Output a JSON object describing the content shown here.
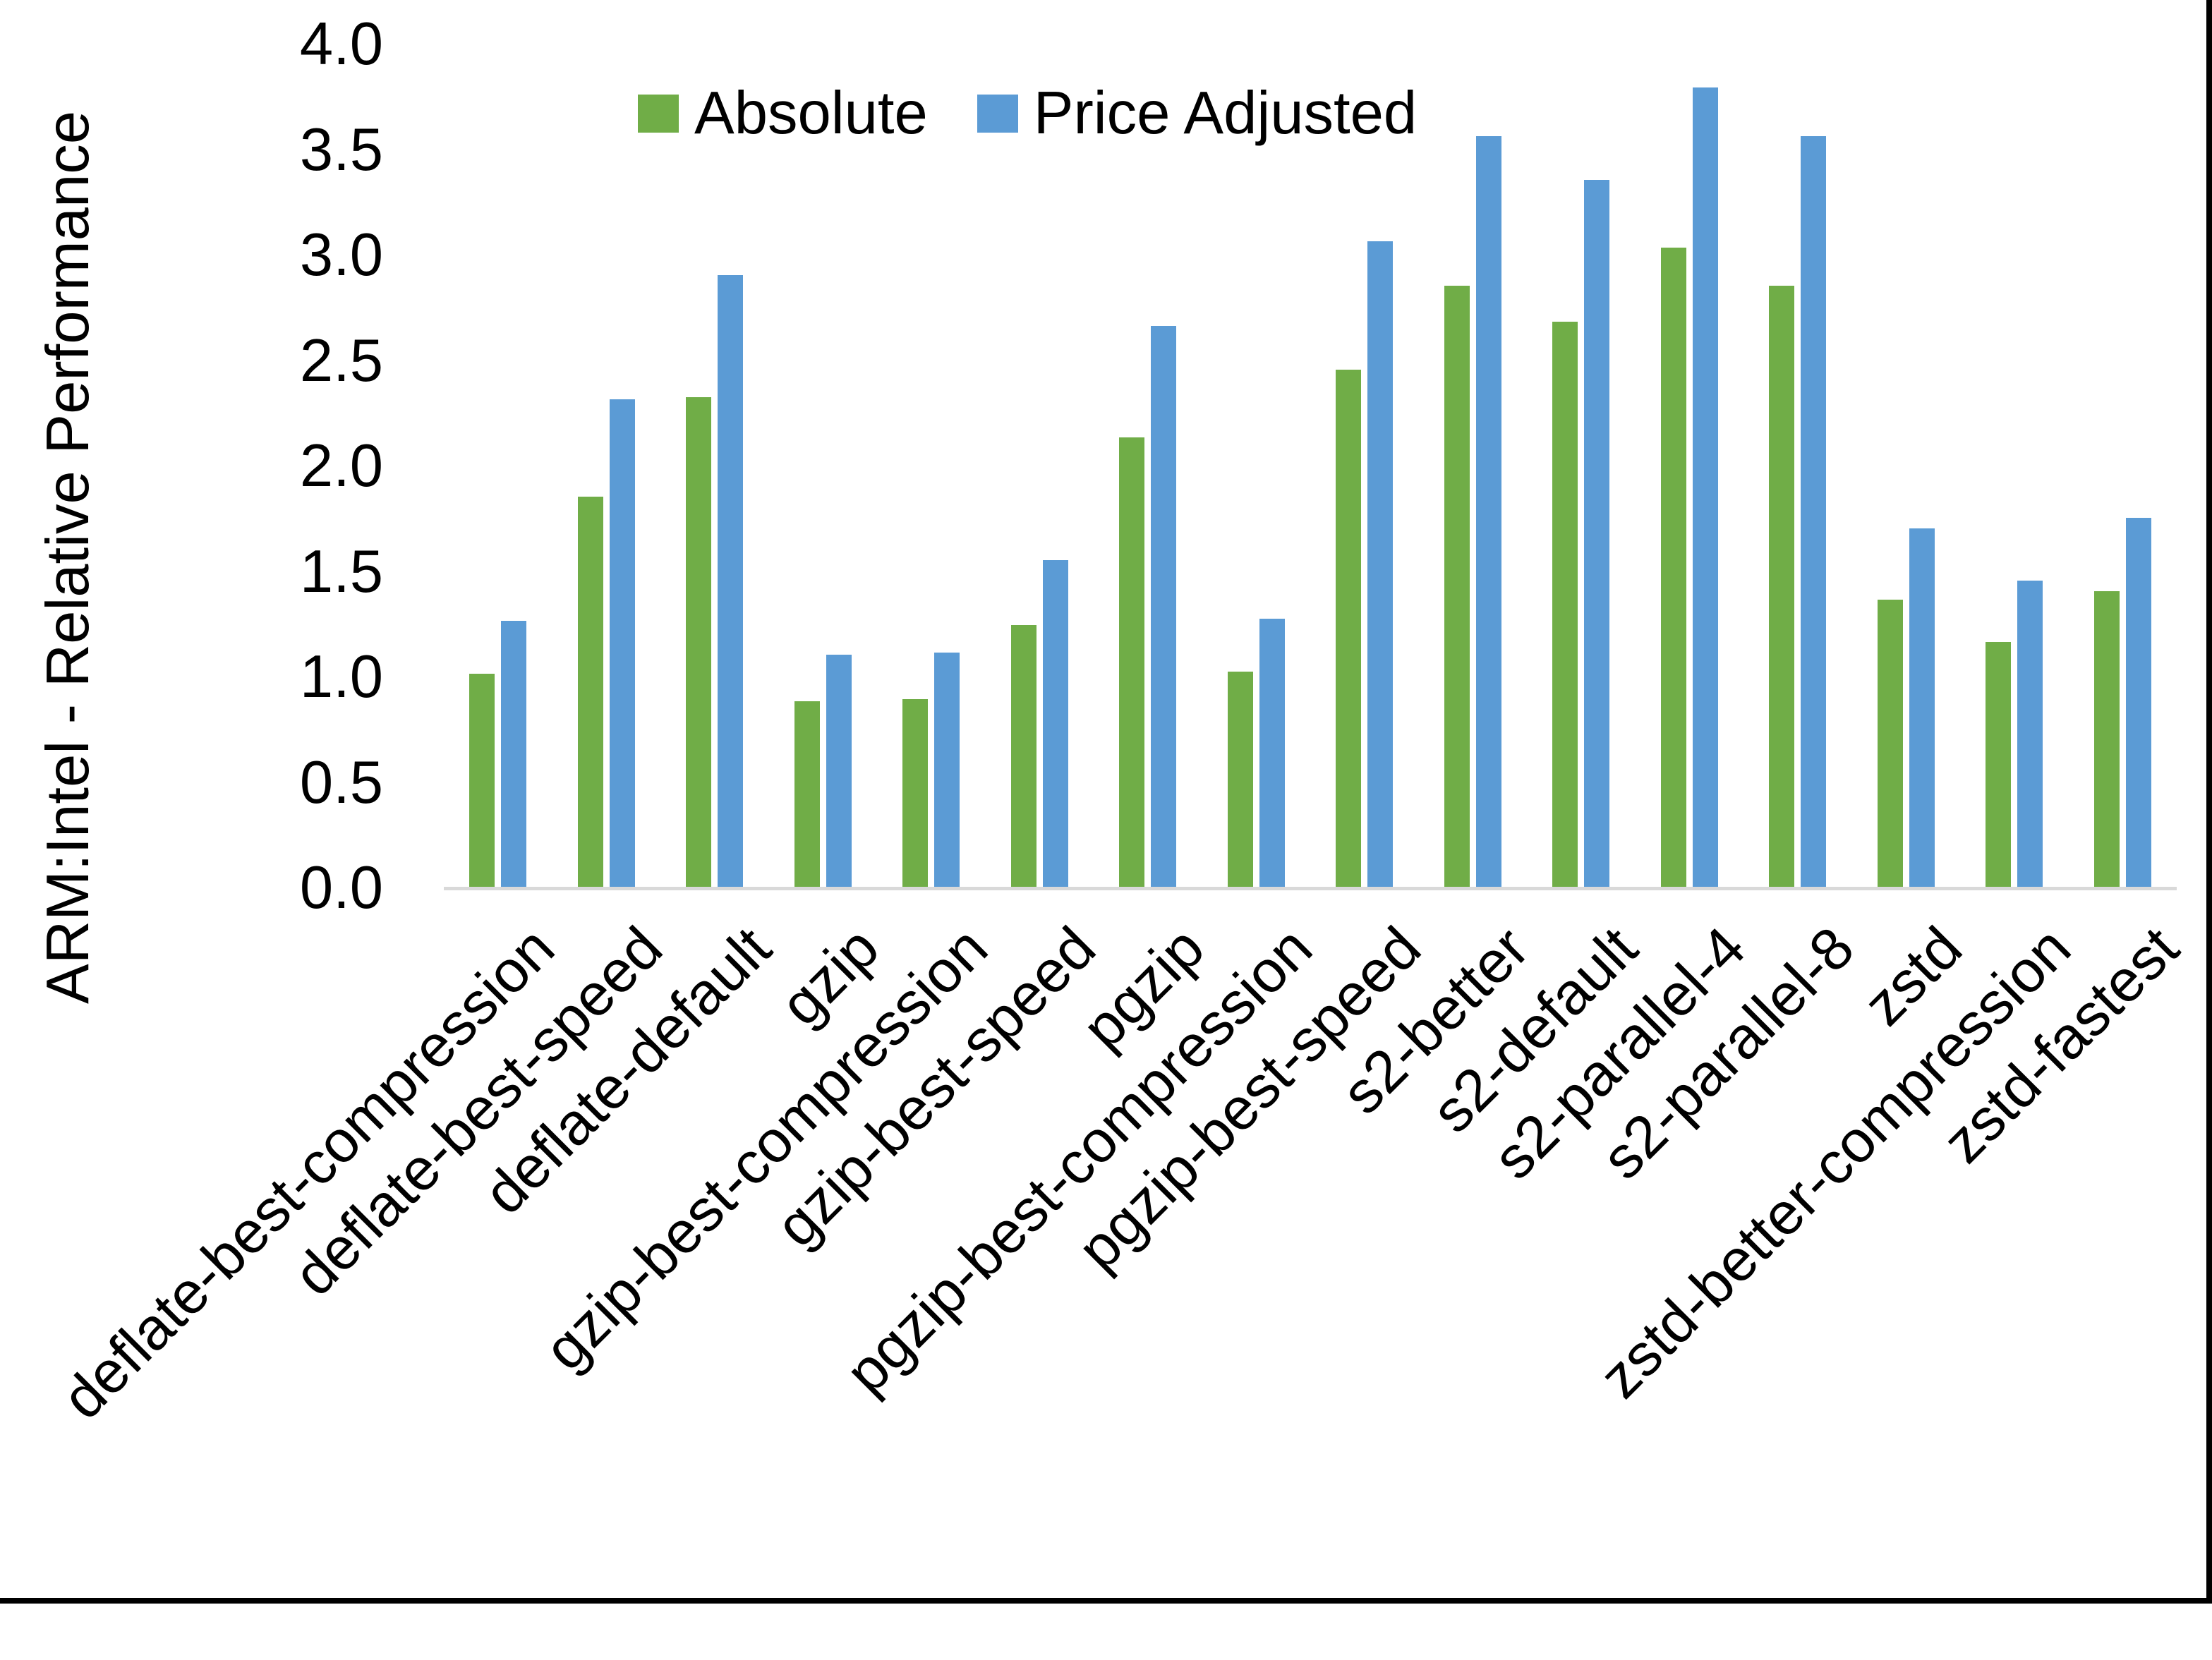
{
  "chart_data": {
    "type": "bar",
    "title": "",
    "ylabel": "ARM:Intel - Relative Performance",
    "xlabel": "",
    "ylim": [
      0,
      4
    ],
    "ytick_step": 0.5,
    "ytick_labels": [
      "0.0",
      "0.5",
      "1.0",
      "1.5",
      "2.0",
      "2.5",
      "3.0",
      "3.5",
      "4.0"
    ],
    "grid": false,
    "legend_position": "top-center",
    "categories": [
      "deflate-best-compression",
      "deflate-best-speed",
      "deflate-default",
      "gzip",
      "gzip-best-compression",
      "gzip-best-speed",
      "pgzip",
      "pgzip-best-compression",
      "pgzip-best-speed",
      "s2-better",
      "s2-default",
      "s2-parallel-4",
      "s2-parallel-8",
      "zstd",
      "zstd-better-compression",
      "zstd-fastest"
    ],
    "series": [
      {
        "name": "Absolute",
        "color": "#70AD47",
        "values": [
          1.01,
          1.85,
          2.32,
          0.88,
          0.89,
          1.24,
          2.13,
          1.02,
          2.45,
          2.85,
          2.68,
          3.03,
          2.85,
          1.36,
          1.16,
          1.4
        ]
      },
      {
        "name": "Price Adjusted",
        "color": "#5B9BD5",
        "values": [
          1.26,
          2.31,
          2.9,
          1.1,
          1.11,
          1.55,
          2.66,
          1.27,
          3.06,
          3.56,
          3.35,
          3.79,
          3.56,
          1.7,
          1.45,
          1.75
        ]
      }
    ],
    "axis_line_color": "#D9D9D9",
    "text_color": "#000000",
    "background_color": "#FFFFFF"
  },
  "frame": {
    "border_color": "#000000"
  }
}
